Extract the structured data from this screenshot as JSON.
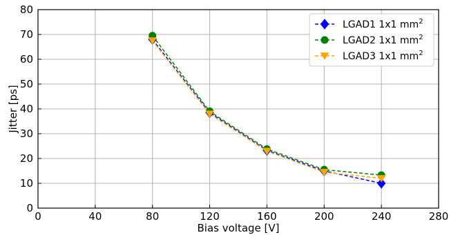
{
  "chart_data": {
    "type": "line",
    "xlabel": "Bias voltage [V]",
    "ylabel": "Jitter [ps]",
    "xlim": [
      0,
      280
    ],
    "ylim": [
      0,
      80
    ],
    "xticks": [
      0,
      40,
      80,
      120,
      160,
      200,
      240,
      280
    ],
    "yticks": [
      0,
      10,
      20,
      30,
      40,
      50,
      60,
      70,
      80
    ],
    "grid": true,
    "legend_position": "top-right",
    "series": [
      {
        "name": "LGAD1 1x1 mm",
        "superscript": "2",
        "color": "#0000ff",
        "marker": "diamond",
        "linestyle": "dashed",
        "x": [
          80,
          120,
          160,
          200,
          240
        ],
        "y": [
          68,
          38.5,
          23.3,
          15,
          10
        ]
      },
      {
        "name": "LGAD2 1x1 mm",
        "superscript": "2",
        "color": "#008000",
        "marker": "circle",
        "linestyle": "dashed",
        "x": [
          80,
          120,
          160,
          200,
          240
        ],
        "y": [
          69.5,
          39,
          23.8,
          15.5,
          13.3
        ]
      },
      {
        "name": "LGAD3 1x1 mm",
        "superscript": "2",
        "color": "#ffa500",
        "marker": "triangle-down",
        "linestyle": "dashed",
        "x": [
          80,
          120,
          160,
          200,
          240
        ],
        "y": [
          67.5,
          38,
          23,
          14.5,
          12
        ]
      }
    ]
  }
}
